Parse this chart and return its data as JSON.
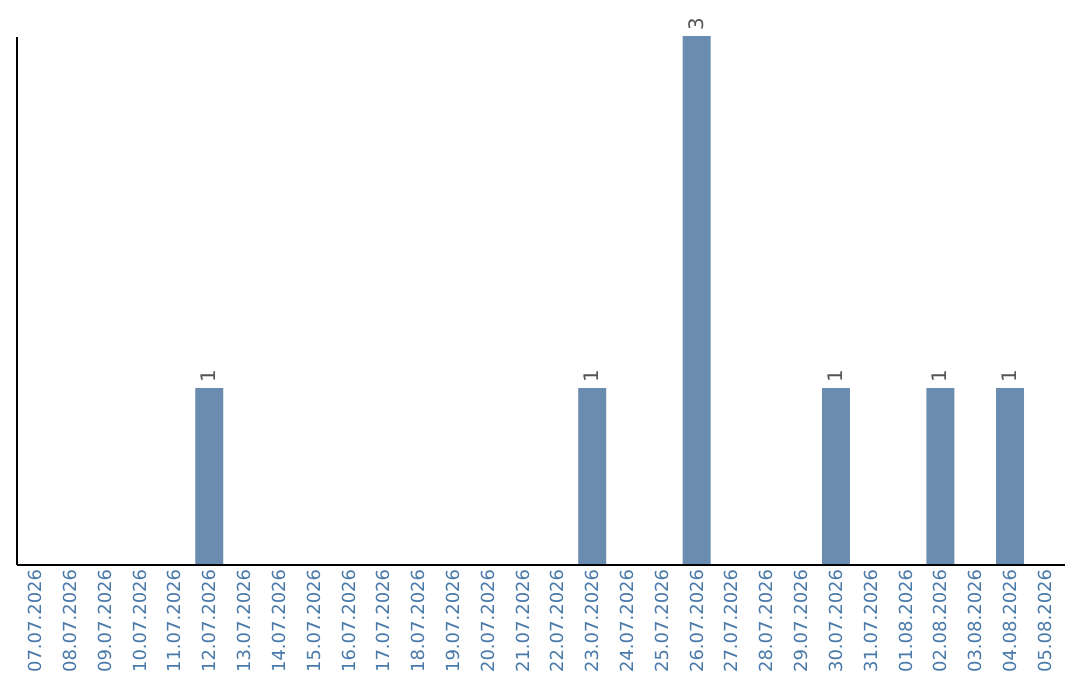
{
  "chart_data": {
    "type": "bar",
    "categories": [
      "07.07.2026",
      "08.07.2026",
      "09.07.2026",
      "10.07.2026",
      "11.07.2026",
      "12.07.2026",
      "13.07.2026",
      "14.07.2026",
      "15.07.2026",
      "16.07.2026",
      "17.07.2026",
      "18.07.2026",
      "19.07.2026",
      "20.07.2026",
      "21.07.2026",
      "22.07.2026",
      "23.07.2026",
      "24.07.2026",
      "25.07.2026",
      "26.07.2026",
      "27.07.2026",
      "28.07.2026",
      "29.07.2026",
      "30.07.2026",
      "31.07.2026",
      "01.08.2026",
      "02.08.2026",
      "03.08.2026",
      "04.08.2026",
      "05.08.2026"
    ],
    "values": [
      0,
      0,
      0,
      0,
      0,
      1,
      0,
      0,
      0,
      0,
      0,
      0,
      0,
      0,
      0,
      0,
      1,
      0,
      0,
      3,
      0,
      0,
      0,
      1,
      0,
      0,
      1,
      0,
      1,
      0
    ],
    "value_labels": [
      null,
      null,
      null,
      null,
      null,
      "1",
      null,
      null,
      null,
      null,
      null,
      null,
      null,
      null,
      null,
      null,
      "1",
      null,
      null,
      "3",
      null,
      null,
      null,
      "1",
      null,
      null,
      "1",
      null,
      "1",
      null
    ],
    "color": "#6a8caf",
    "tick_labels": "x",
    "grid": false
  }
}
